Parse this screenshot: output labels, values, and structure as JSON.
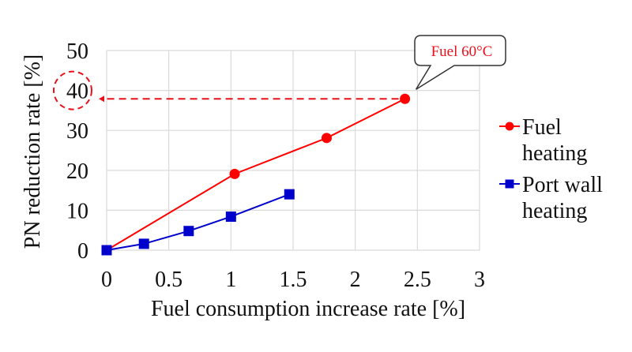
{
  "chart_data": {
    "type": "line",
    "title": "",
    "xlabel": "Fuel consumption increase rate [%]",
    "ylabel": "PN reduction rate [%]",
    "xlim": [
      0,
      3
    ],
    "ylim": [
      0,
      50
    ],
    "x_ticks": [
      0,
      0.5,
      1,
      1.5,
      2,
      2.5,
      3
    ],
    "x_tick_labels": [
      "0",
      "0.5",
      "1",
      "1.5",
      "2",
      "2.5",
      "3"
    ],
    "y_ticks": [
      0,
      10,
      20,
      30,
      40,
      50
    ],
    "y_tick_labels": [
      "0",
      "10",
      "20",
      "30",
      "40",
      "50"
    ],
    "grid": true,
    "legend_position": "right",
    "series": [
      {
        "name": "Fuel heating",
        "legend_lines": [
          "Fuel",
          "heating"
        ],
        "color": "#ff0000",
        "marker": "circle",
        "x": [
          0,
          1.03,
          1.77,
          2.4
        ],
        "y": [
          0,
          19.1,
          28.1,
          37.9
        ]
      },
      {
        "name": "Port wall heating",
        "legend_lines": [
          "Port wall",
          "heating"
        ],
        "color": "#0000cc",
        "marker": "square",
        "x": [
          0,
          0.3,
          0.66,
          1.0,
          1.47
        ],
        "y": [
          0,
          1.6,
          4.8,
          8.4,
          14.0
        ]
      }
    ],
    "annotations": [
      {
        "type": "callout",
        "text": "Fuel 60°C",
        "text_color": "#e8101a",
        "target": {
          "x": 2.4,
          "y": 37.9
        }
      },
      {
        "type": "dashed-arrow",
        "color": "#e8101a",
        "from": {
          "x": 2.4,
          "y": 37.9
        },
        "to": {
          "x": 0,
          "y": 37.9
        }
      },
      {
        "type": "dashed-circle",
        "color": "#e8101a",
        "around_tick": "40"
      }
    ]
  }
}
